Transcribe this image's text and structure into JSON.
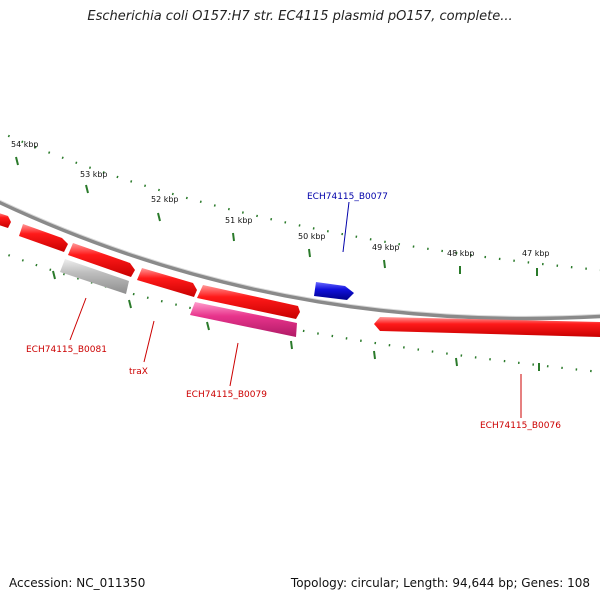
{
  "title": "Escherichia coli O157:H7 str. EC4115 plasmid pO157, complete...",
  "footer": {
    "accession": "Accession: NC_011350",
    "summary": "Topology: circular; Length: 94,644 bp; Genes: 108"
  },
  "colors": {
    "backbone": "#8c8c8c",
    "tick": "#2a7a2a",
    "gene_red": "#ff1a1a",
    "gene_pink": "#e8348c",
    "gene_gray": "#bbbbbb",
    "gene_blue": "#1111dd",
    "label_red": "#cc0000",
    "label_blue": "#0000aa"
  },
  "kbp_labels": [
    "54 kbp",
    "53 kbp",
    "52 kbp",
    "51 kbp",
    "50 kbp",
    "49 kbp",
    "48 kbp",
    "47 kbp"
  ],
  "gene_labels": [
    {
      "text": "ECH74115_B0077",
      "color": "blue"
    },
    {
      "text": "ECH74115_B0081",
      "color": "red"
    },
    {
      "text": "traX",
      "color": "red"
    },
    {
      "text": "ECH74115_B0079",
      "color": "red"
    },
    {
      "text": "ECH74115_B0076",
      "color": "red"
    }
  ]
}
